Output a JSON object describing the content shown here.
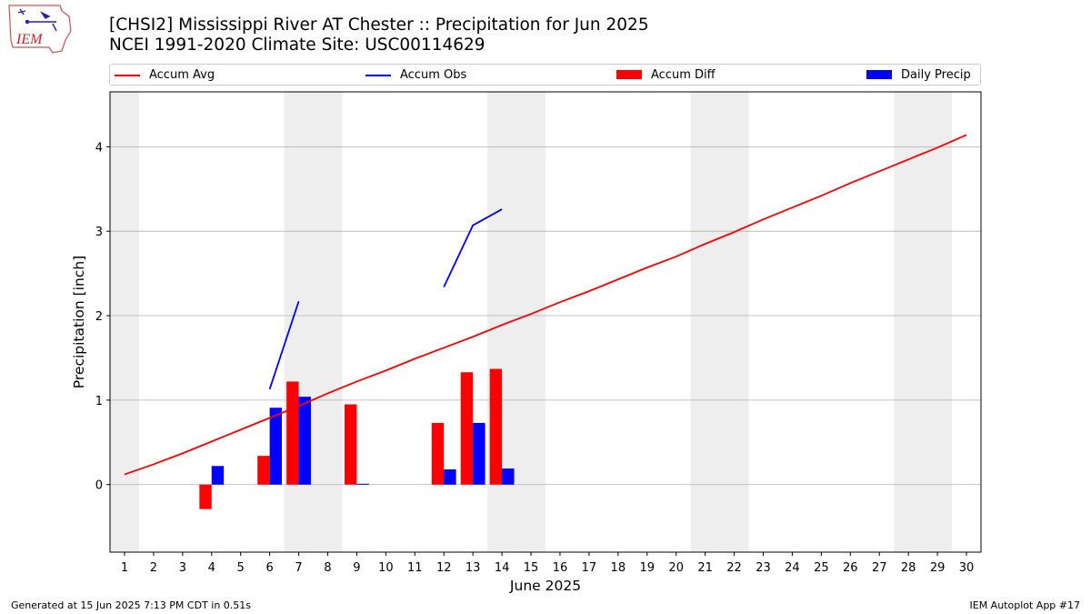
{
  "header": {
    "title_line1": "[CHSI2] Mississippi River  AT Chester :: Precipitation for Jun 2025",
    "title_line2": "NCEI 1991-2020 Climate Site: USC00114629",
    "logo_text": "IEM"
  },
  "footer": {
    "generated": "Generated at 15 Jun 2025 7:13 PM CDT in 0.51s",
    "app": "IEM Autoplot App #17"
  },
  "chart_data": {
    "type": "bar",
    "xlabel": "June 2025",
    "ylabel": "Precipitation [inch]",
    "xlim": [
      0.5,
      30.5
    ],
    "ylim": [
      -0.8,
      4.65
    ],
    "yticks": [
      0,
      1,
      2,
      3,
      4
    ],
    "xticks": [
      1,
      2,
      3,
      4,
      5,
      6,
      7,
      8,
      9,
      10,
      11,
      12,
      13,
      14,
      15,
      16,
      17,
      18,
      19,
      20,
      21,
      22,
      23,
      24,
      25,
      26,
      27,
      28,
      29,
      30
    ],
    "grid": "horizontal",
    "legend_placement": "top",
    "weekend_shading": [
      [
        0.5,
        1.5
      ],
      [
        6.5,
        8.5
      ],
      [
        13.5,
        15.5
      ],
      [
        20.5,
        22.5
      ],
      [
        27.5,
        29.5
      ]
    ],
    "colors": {
      "avg": "#ff0000",
      "obs": "#0000ff",
      "diff": "#ff0000",
      "daily": "#0000ff",
      "shade": "#eeeeee"
    },
    "series": [
      {
        "name": "Accum Avg",
        "kind": "line",
        "x": [
          1,
          2,
          3,
          4,
          5,
          6,
          7,
          8,
          9,
          10,
          11,
          12,
          13,
          14,
          15,
          16,
          17,
          18,
          19,
          20,
          21,
          22,
          23,
          24,
          25,
          26,
          27,
          28,
          29,
          30
        ],
        "values": [
          0.12,
          0.24,
          0.37,
          0.51,
          0.65,
          0.79,
          0.93,
          1.08,
          1.22,
          1.35,
          1.49,
          1.62,
          1.75,
          1.89,
          2.02,
          2.16,
          2.29,
          2.43,
          2.57,
          2.7,
          2.85,
          2.99,
          3.14,
          3.28,
          3.42,
          3.57,
          3.71,
          3.85,
          3.99,
          4.14
        ]
      },
      {
        "name": "Accum Obs",
        "kind": "line",
        "segments": [
          {
            "x": [
              6,
              7
            ],
            "values": [
              1.13,
              2.17
            ]
          },
          {
            "x": [
              12,
              13,
              14
            ],
            "values": [
              2.34,
              3.07,
              3.26
            ]
          }
        ]
      },
      {
        "name": "Accum Diff",
        "kind": "bar",
        "x": [
          4,
          6,
          7,
          9,
          12,
          13,
          14
        ],
        "values": [
          -0.29,
          0.34,
          1.22,
          0.95,
          0.73,
          1.33,
          1.37
        ]
      },
      {
        "name": "Daily Precip",
        "kind": "bar",
        "x": [
          4,
          6,
          7,
          9,
          12,
          13,
          14
        ],
        "values": [
          0.22,
          0.91,
          1.04,
          0.01,
          0.18,
          0.73,
          0.19
        ]
      }
    ]
  }
}
